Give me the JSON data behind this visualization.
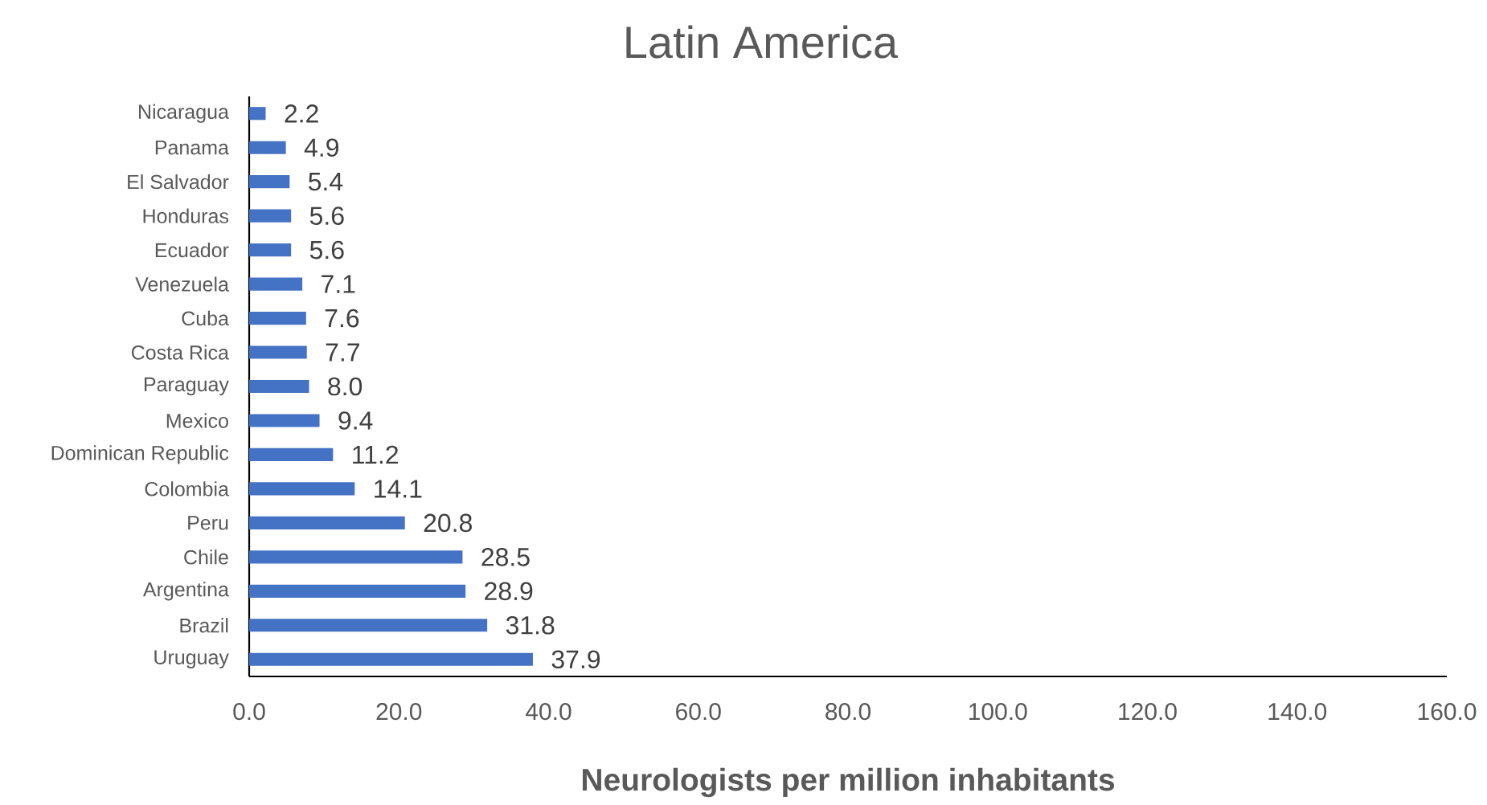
{
  "chart_data": {
    "type": "bar",
    "orientation": "horizontal",
    "title": "Latin America",
    "xlabel": "Neurologists per million inhabitants",
    "categories": [
      "Nicaragua",
      "Panama",
      "El Salvador",
      "Honduras",
      "Ecuador",
      "Venezuela",
      "Cuba",
      "Costa Rica",
      "Paraguay",
      "Mexico",
      "Dominican Republic",
      "Colombia",
      "Peru",
      "Chile",
      "Argentina",
      "Brazil",
      "Uruguay"
    ],
    "values": [
      2.2,
      4.9,
      5.4,
      5.6,
      5.6,
      7.1,
      7.6,
      7.7,
      8.0,
      9.4,
      11.2,
      14.1,
      20.8,
      28.5,
      28.9,
      31.8,
      37.9
    ],
    "value_labels": [
      "2.2",
      "4.9",
      "5.4",
      "5.6",
      "5.6",
      "7.1",
      "7.6",
      "7.7",
      "8.0",
      "9.4",
      "11.2",
      "14.1",
      "20.8",
      "28.5",
      "28.9",
      "31.8",
      "37.9"
    ],
    "color": "#4472c4",
    "xlim": [
      0,
      160
    ],
    "xticks": [
      {
        "value": 0,
        "label": "0.0"
      },
      {
        "value": 20,
        "label": "20.0"
      },
      {
        "value": 40,
        "label": "40.0"
      },
      {
        "value": 60,
        "label": "60.0"
      },
      {
        "value": 80,
        "label": "80.0"
      },
      {
        "value": 100,
        "label": "100.0"
      },
      {
        "value": 120,
        "label": "120.0"
      },
      {
        "value": 140,
        "label": "140.0"
      },
      {
        "value": 160,
        "label": "160.0"
      }
    ]
  }
}
